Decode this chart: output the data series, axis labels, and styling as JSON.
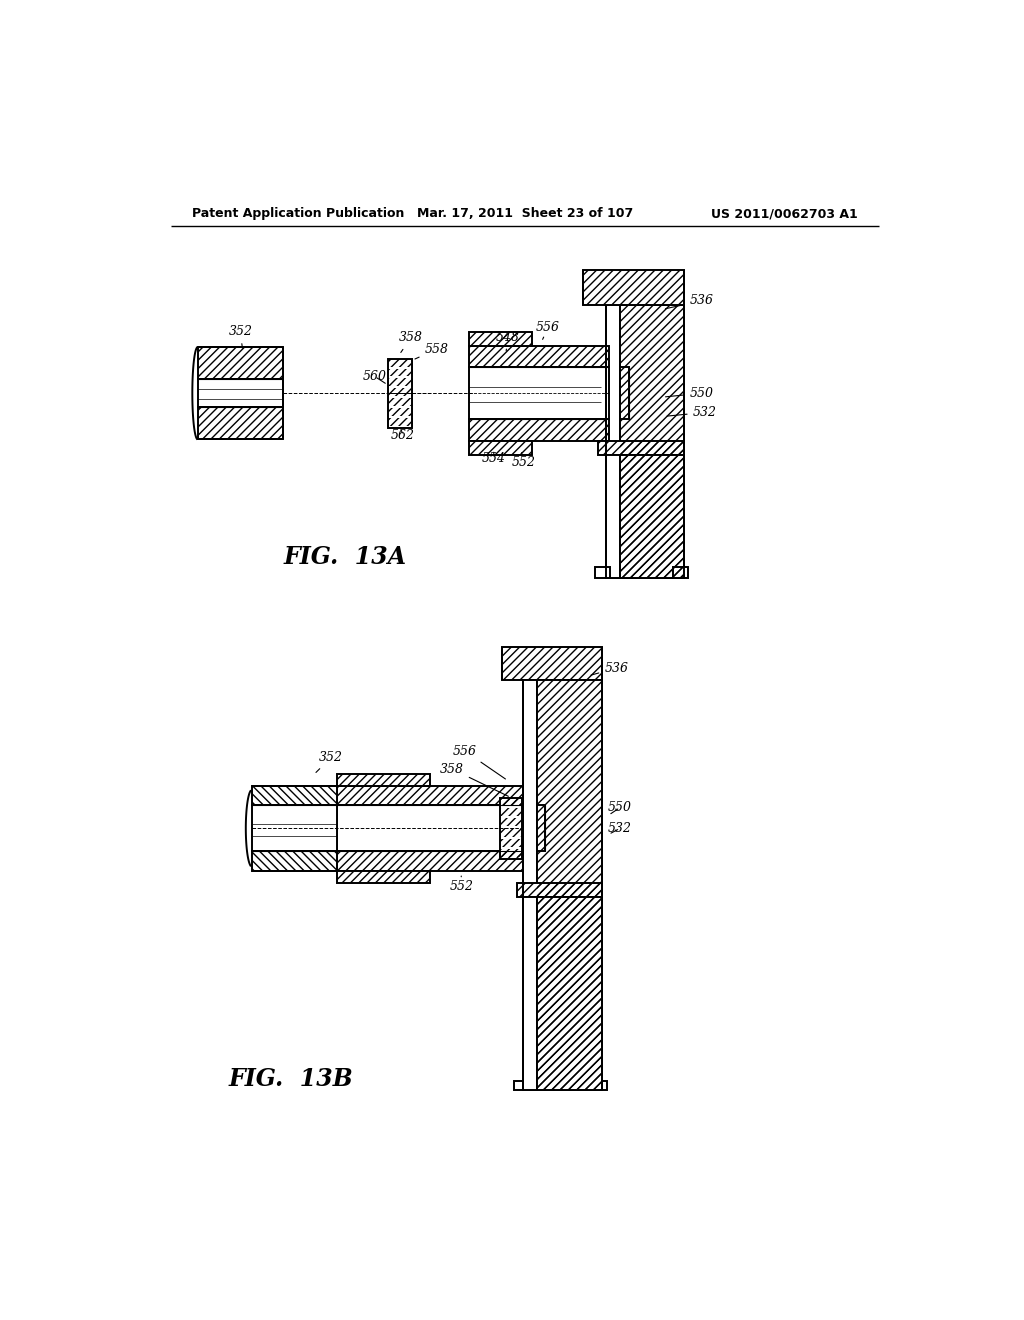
{
  "bg_color": "#ffffff",
  "line_color": "#000000",
  "header_left": "Patent Application Publication",
  "header_mid": "Mar. 17, 2011  Sheet 23 of 107",
  "header_right": "US 2011/0062703 A1",
  "fig_label_A": "FIG.  13A",
  "fig_label_B": "FIG.  13B"
}
